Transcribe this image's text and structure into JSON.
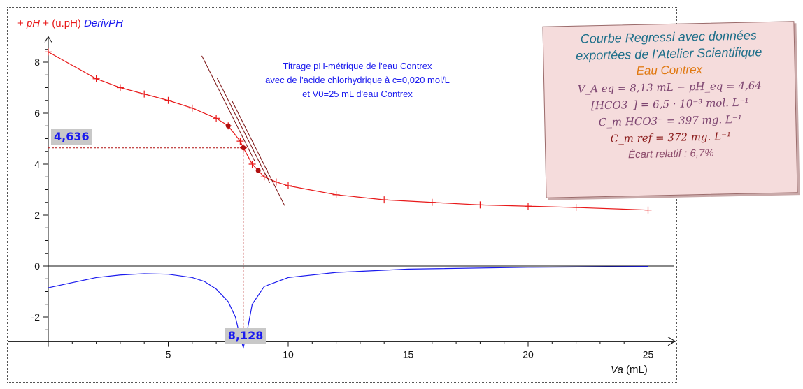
{
  "legend": {
    "ph_marker": "+",
    "ph_label": "pH",
    "unit_marker": "+",
    "unit_label": "(u.pH)",
    "deriv_label": "DerivPH"
  },
  "title_lines": [
    "Titrage pH-métrique de l'eau Contrex",
    "avec de l'acide chlorhydrique à c=0,020 mol/L",
    "et V0=25 mL d'eau Contrex"
  ],
  "equivalence_boxes": {
    "ph_value": "4,636",
    "va_value": "8,128"
  },
  "x_axis": {
    "name": "Va",
    "unit": "(mL)"
  },
  "note": {
    "title_line1": "Courbe Regressi avec données",
    "title_line2": "exportées de l’Atelier Scientifique",
    "subtitle": "Eau Contrex",
    "line1": "V_A eq = 8,13 mL  −  pH_eq = 4,64",
    "line2": "[HCO3⁻] = 6,5 · 10⁻³ mol. L⁻¹",
    "line3": "C_m HCO3⁻ = 397 mg. L⁻¹",
    "line4": "C_m ref = 372 mg. L⁻¹",
    "line5": "Écart relatif : 6,7%"
  },
  "colors": {
    "ph_curve": "#e8191a",
    "derivative_curve": "#1a1aee",
    "construction_lines": "#7a1010",
    "note_background": "#f5dcdc"
  },
  "chart_data": {
    "type": "line",
    "xlim": [
      -1,
      31
    ],
    "ylim": [
      -3,
      9
    ],
    "x_ticks": [
      5,
      10,
      15,
      20,
      25
    ],
    "y_ticks": [
      -2,
      0,
      2,
      4,
      6,
      8
    ],
    "grid": false,
    "series": [
      {
        "name": "pH",
        "marker": "+",
        "x": [
          0,
          2,
          3,
          4,
          5,
          6,
          7,
          7.5,
          8,
          8.13,
          8.5,
          9,
          9.5,
          10,
          12,
          14,
          16,
          18,
          20,
          22,
          25
        ],
        "y": [
          8.4,
          7.35,
          7.0,
          6.75,
          6.5,
          6.2,
          5.8,
          5.5,
          4.9,
          4.64,
          4.0,
          3.5,
          3.3,
          3.15,
          2.8,
          2.6,
          2.5,
          2.4,
          2.35,
          2.3,
          2.2
        ]
      },
      {
        "name": "DerivPH",
        "x": [
          0,
          1,
          2,
          3,
          4,
          5,
          6,
          6.5,
          7,
          7.5,
          7.8,
          8.0,
          8.13,
          8.3,
          8.5,
          9,
          10,
          12,
          15,
          20,
          25
        ],
        "y": [
          -0.85,
          -0.65,
          -0.45,
          -0.35,
          -0.3,
          -0.32,
          -0.45,
          -0.6,
          -0.9,
          -1.4,
          -2.0,
          -2.8,
          -3.2,
          -2.5,
          -1.5,
          -0.8,
          -0.45,
          -0.25,
          -0.12,
          -0.05,
          -0.02
        ]
      }
    ],
    "equivalence": {
      "x": 8.128,
      "y": 4.636
    }
  }
}
